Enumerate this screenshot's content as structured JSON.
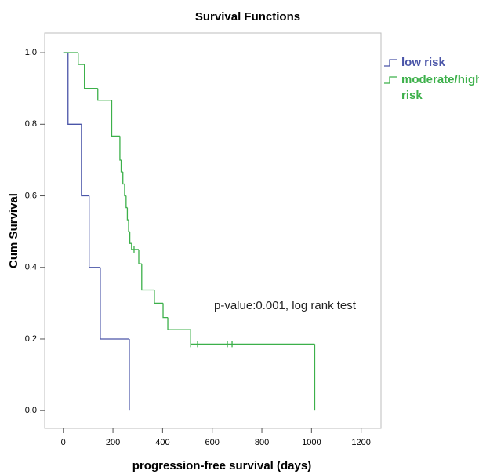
{
  "chart_data": {
    "type": "step",
    "title": "Survival Functions",
    "x_label": "progression-free survival (days)",
    "y_label": "Cum Survival",
    "annotation": "p-value:0.001, log rank test",
    "xlim": [
      -75,
      1280
    ],
    "ylim": [
      -0.05,
      1.055
    ],
    "xticks": [
      0,
      200,
      400,
      600,
      800,
      1000,
      1200
    ],
    "yticks": [
      {
        "value": 0,
        "label": "0.0"
      },
      0.2,
      0.4,
      0.6,
      0.8,
      {
        "value": 1,
        "label": "1.0"
      }
    ],
    "series": [
      {
        "name": "low risk",
        "color": "#4a55a8",
        "x": [
          0,
          19,
          73,
          104,
          149,
          266
        ],
        "values": [
          1,
          0.8,
          0.6,
          0.4,
          0.2,
          0
        ],
        "censored_x": [],
        "censored_y": []
      },
      {
        "name": "moderate/high risk",
        "color": "#3cb04a",
        "x": [
          0,
          60,
          85,
          139,
          195,
          228,
          233,
          240,
          247,
          253,
          258,
          263,
          268,
          275,
          304,
          316,
          367,
          402,
          421,
          513,
          1013
        ],
        "values": [
          1,
          0.967,
          0.9,
          0.867,
          0.767,
          0.7,
          0.667,
          0.633,
          0.6,
          0.567,
          0.533,
          0.5,
          0.467,
          0.45,
          0.41,
          0.337,
          0.3,
          0.26,
          0.226,
          0.186,
          0
        ],
        "censored_x": [
          285,
          513,
          541,
          661,
          680
        ],
        "censored_y": [
          0.45,
          0.186,
          0.186,
          0.186,
          0.186
        ]
      }
    ]
  }
}
